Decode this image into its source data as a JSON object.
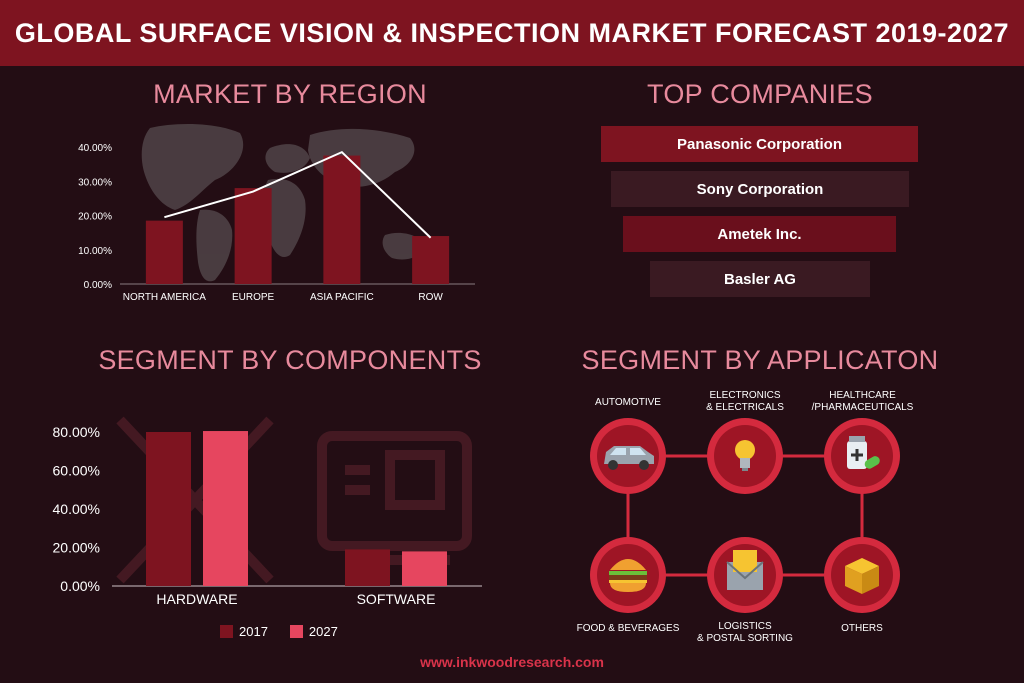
{
  "title": "GLOBAL SURFACE VISION & INSPECTION MARKET FORECAST 2019-2027",
  "footer": "www.inkwoodresearch.com",
  "colors": {
    "banner": "#7e1420",
    "bar_dark": "#7e1420",
    "bar_light": "#e6465f",
    "accent_pink": "#e88a9d",
    "circle": "#d42a3e"
  },
  "chart_data": [
    {
      "type": "bar",
      "title": "MARKET BY REGION",
      "categories": [
        "NORTH AMERICA",
        "EUROPE",
        "ASIA PACIFIC",
        "ROW"
      ],
      "values": [
        18.5,
        28,
        37.5,
        14
      ],
      "line_values": [
        19.5,
        27,
        38.5,
        13.5
      ],
      "ylim": [
        0,
        40
      ],
      "yticks": [
        "0.00%",
        "10.00%",
        "20.00%",
        "30.00%",
        "40.00%"
      ],
      "ytick_values": [
        0,
        10,
        20,
        30,
        40
      ]
    },
    {
      "type": "bar",
      "title": "SEGMENT BY COMPONENTS",
      "categories": [
        "HARDWARE",
        "SOFTWARE"
      ],
      "series": [
        {
          "name": "2017",
          "values": [
            80,
            19
          ]
        },
        {
          "name": "2027",
          "values": [
            80.5,
            18
          ]
        }
      ],
      "ylim": [
        0,
        80
      ],
      "yticks": [
        "0.00%",
        "20.00%",
        "40.00%",
        "60.00%",
        "80.00%"
      ],
      "ytick_values": [
        0,
        20,
        40,
        60,
        80
      ]
    }
  ],
  "companies": {
    "title": "TOP COMPANIES",
    "items": [
      "Panasonic Corporation",
      "Sony Corporation",
      "Ametek Inc.",
      "Basler AG"
    ]
  },
  "applications": {
    "title": "SEGMENT BY APPLICATON",
    "items": [
      {
        "line1": "AUTOMOTIVE",
        "line2": "",
        "icon": "car-icon"
      },
      {
        "line1": "ELECTRONICS",
        "line2": "& ELECTRICALS",
        "icon": "lightbulb-icon"
      },
      {
        "line1": "HEALTHCARE",
        "line2": "/PHARMACEUTICALS",
        "icon": "medicine-icon"
      },
      {
        "line1": "FOOD & BEVERAGES",
        "line2": "",
        "icon": "burger-icon"
      },
      {
        "line1": "LOGISTICS",
        "line2": "& POSTAL SORTING",
        "icon": "mail-icon"
      },
      {
        "line1": "OTHERS",
        "line2": "",
        "icon": "box-icon"
      }
    ]
  }
}
